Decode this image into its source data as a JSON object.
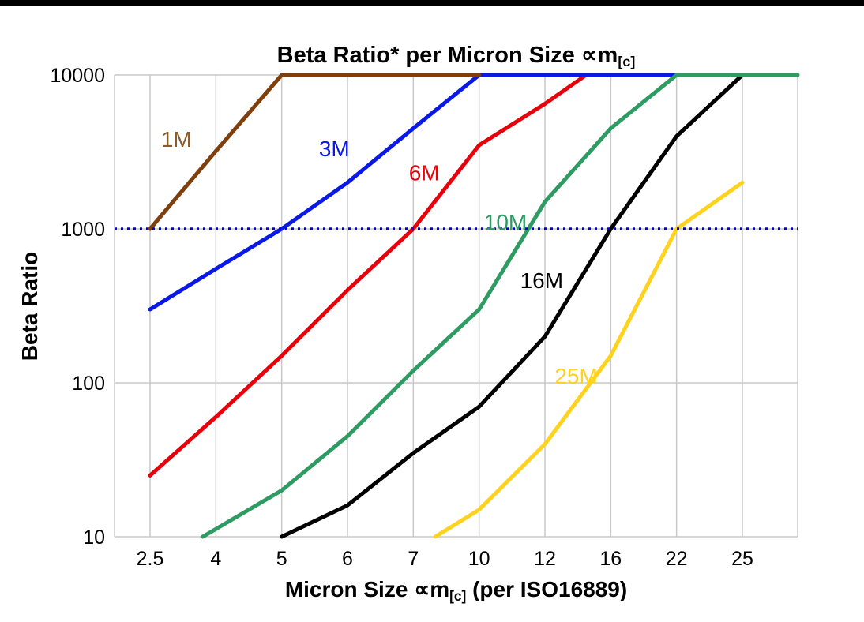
{
  "frame": {
    "background": "#ffffff",
    "top_border_color": "#000000"
  },
  "chart_data": {
    "type": "line",
    "title": {
      "prefix": "Beta Ratio* per Micron Size ",
      "symbol": "∝m",
      "sub": "[c]"
    },
    "xlabel": {
      "prefix": "Micron Size ",
      "symbol": "∝m",
      "sub": "[c]",
      "suffix": " (per ISO16889)"
    },
    "ylabel": "Beta Ratio",
    "x_categories": [
      2.5,
      4,
      5,
      6,
      7,
      10,
      12,
      16,
      22,
      25
    ],
    "x_tick_labels": [
      "2.5",
      "4",
      "5",
      "6",
      "7",
      "10",
      "12",
      "16",
      "22",
      "25"
    ],
    "y_scale": "log",
    "ylim": [
      10,
      10000
    ],
    "y_ticks": [
      10,
      100,
      1000,
      10000
    ],
    "y_tick_labels": [
      "10",
      "100",
      "1000",
      "10000"
    ],
    "grid": true,
    "grid_color": "#c8c8c8",
    "legend_position": "inline-labels",
    "reference_line": {
      "value": 1000,
      "color": "#0000ee",
      "style": "dotted"
    },
    "series": [
      {
        "name": "25M",
        "color": "#ffd21e",
        "points": [
          [
            8,
            10
          ],
          [
            10,
            15
          ],
          [
            12,
            40
          ],
          [
            16,
            150
          ],
          [
            22,
            1000
          ],
          [
            25,
            2000
          ]
        ]
      },
      {
        "name": "16M",
        "color": "#000000",
        "points": [
          [
            5,
            10
          ],
          [
            6,
            16
          ],
          [
            7,
            35
          ],
          [
            10,
            70
          ],
          [
            12,
            200
          ],
          [
            16,
            1000
          ],
          [
            22,
            4000
          ],
          [
            25,
            10000
          ]
        ]
      },
      {
        "name": "6M",
        "color": "#e8000b",
        "points": [
          [
            2.5,
            25
          ],
          [
            4,
            60
          ],
          [
            5,
            150
          ],
          [
            6,
            400
          ],
          [
            7,
            1000
          ],
          [
            10,
            3500
          ],
          [
            12,
            6500
          ],
          [
            14.5,
            10000
          ],
          [
            25,
            10000
          ]
        ]
      },
      {
        "name": "3M",
        "color": "#0a18e8",
        "points": [
          [
            2.5,
            300
          ],
          [
            4,
            550
          ],
          [
            5,
            1000
          ],
          [
            6,
            2000
          ],
          [
            7,
            4500
          ],
          [
            10,
            10000
          ],
          [
            25,
            10000
          ]
        ]
      },
      {
        "name": "10M",
        "color": "#2e9b63",
        "extend_right": true,
        "points": [
          [
            3.7,
            10
          ],
          [
            5,
            20
          ],
          [
            6,
            45
          ],
          [
            7,
            120
          ],
          [
            10,
            300
          ],
          [
            12,
            1500
          ],
          [
            16,
            4500
          ],
          [
            22,
            10000
          ],
          [
            25,
            10000
          ]
        ]
      },
      {
        "name": "1M",
        "color": "#7f3f0c",
        "points": [
          [
            2.5,
            1000
          ],
          [
            4,
            3200
          ],
          [
            5,
            10000
          ],
          [
            10,
            10000
          ]
        ]
      }
    ],
    "series_labels": [
      {
        "text": "1M",
        "color": "#8a5a2b",
        "micron": 3.1,
        "value": 3800
      },
      {
        "text": "3M",
        "color": "#0a18e8",
        "micron": 5.8,
        "value": 3300
      },
      {
        "text": "6M",
        "color": "#e8000b",
        "micron": 7.5,
        "value": 2300
      },
      {
        "text": "10M",
        "color": "#2e9b63",
        "micron": 10.8,
        "value": 1100
      },
      {
        "text": "16M",
        "color": "#000000",
        "micron": 11.9,
        "value": 460
      },
      {
        "text": "25M",
        "color": "#ffd21e",
        "micron": 13.9,
        "value": 110
      }
    ]
  }
}
